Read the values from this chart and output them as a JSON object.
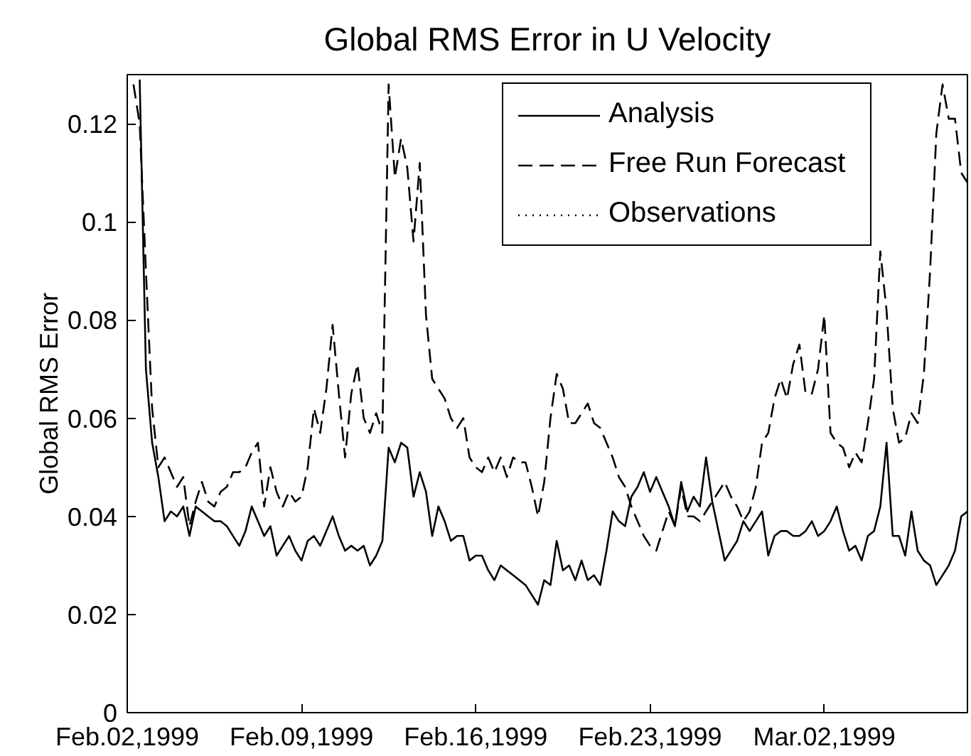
{
  "chart_data": {
    "type": "line",
    "title": "Global RMS Error in U Velocity",
    "ylabel": "Global RMS Error",
    "xlim": [
      "1999-02-02",
      "1999-03-07T18:00"
    ],
    "xticks": [
      {
        "value": "1999-02-02",
        "label": "Feb.02,1999"
      },
      {
        "value": "1999-02-09",
        "label": "Feb.09,1999"
      },
      {
        "value": "1999-02-16",
        "label": "Feb.16,1999"
      },
      {
        "value": "1999-02-23",
        "label": "Feb.23,1999"
      },
      {
        "value": "1999-03-02",
        "label": "Mar.02,1999"
      }
    ],
    "ylim": [
      0,
      0.13
    ],
    "yticks": [
      0,
      0.02,
      0.04,
      0.06,
      0.08,
      0.1,
      0.12
    ],
    "legend": "top right",
    "x": [
      "1999-02-02T06:00",
      "1999-02-02T12:00",
      "1999-02-02T18:00",
      "1999-02-03T00:00",
      "1999-02-03T06:00",
      "1999-02-03T12:00",
      "1999-02-03T18:00",
      "1999-02-04T00:00",
      "1999-02-04T06:00",
      "1999-02-04T12:00",
      "1999-02-04T18:00",
      "1999-02-05T00:00",
      "1999-02-05T06:00",
      "1999-02-05T12:00",
      "1999-02-05T18:00",
      "1999-02-06T00:00",
      "1999-02-06T06:00",
      "1999-02-06T12:00",
      "1999-02-06T18:00",
      "1999-02-07T00:00",
      "1999-02-07T06:00",
      "1999-02-07T12:00",
      "1999-02-07T18:00",
      "1999-02-08T00:00",
      "1999-02-08T06:00",
      "1999-02-08T12:00",
      "1999-02-08T18:00",
      "1999-02-09T00:00",
      "1999-02-09T06:00",
      "1999-02-09T12:00",
      "1999-02-09T18:00",
      "1999-02-10T00:00",
      "1999-02-10T06:00",
      "1999-02-10T12:00",
      "1999-02-10T18:00",
      "1999-02-11T00:00",
      "1999-02-11T06:00",
      "1999-02-11T12:00",
      "1999-02-11T18:00",
      "1999-02-12T00:00",
      "1999-02-12T06:00",
      "1999-02-12T12:00",
      "1999-02-12T18:00",
      "1999-02-13T00:00",
      "1999-02-13T06:00",
      "1999-02-13T12:00",
      "1999-02-13T18:00",
      "1999-02-14T00:00",
      "1999-02-14T06:00",
      "1999-02-14T12:00",
      "1999-02-14T18:00",
      "1999-02-15T00:00",
      "1999-02-15T06:00",
      "1999-02-15T12:00",
      "1999-02-15T18:00",
      "1999-02-16T00:00",
      "1999-02-16T06:00",
      "1999-02-16T12:00",
      "1999-02-16T18:00",
      "1999-02-17T00:00",
      "1999-02-17T06:00",
      "1999-02-17T12:00",
      "1999-02-17T18:00",
      "1999-02-18T00:00",
      "1999-02-18T06:00",
      "1999-02-18T12:00",
      "1999-02-18T18:00",
      "1999-02-19T00:00",
      "1999-02-19T06:00",
      "1999-02-19T12:00",
      "1999-02-19T18:00",
      "1999-02-20T00:00",
      "1999-02-20T06:00",
      "1999-02-20T12:00",
      "1999-02-20T18:00",
      "1999-02-21T00:00",
      "1999-02-21T06:00",
      "1999-02-21T12:00",
      "1999-02-21T18:00",
      "1999-02-22T00:00",
      "1999-02-22T06:00",
      "1999-02-22T12:00",
      "1999-02-22T18:00",
      "1999-02-23T00:00",
      "1999-02-23T06:00",
      "1999-02-23T12:00",
      "1999-02-23T18:00",
      "1999-02-24T00:00",
      "1999-02-24T06:00",
      "1999-02-24T12:00",
      "1999-02-24T18:00",
      "1999-02-25T00:00",
      "1999-02-25T06:00",
      "1999-02-25T12:00",
      "1999-02-25T18:00",
      "1999-02-26T00:00",
      "1999-02-26T06:00",
      "1999-02-26T12:00",
      "1999-02-26T18:00",
      "1999-02-27T00:00",
      "1999-02-27T06:00",
      "1999-02-27T12:00",
      "1999-02-27T18:00",
      "1999-02-28T00:00",
      "1999-02-28T06:00",
      "1999-02-28T12:00",
      "1999-02-28T18:00",
      "1999-03-01T00:00",
      "1999-03-01T06:00",
      "1999-03-01T12:00",
      "1999-03-01T18:00",
      "1999-03-02T00:00",
      "1999-03-02T06:00",
      "1999-03-02T12:00",
      "1999-03-02T18:00",
      "1999-03-03T00:00",
      "1999-03-03T06:00",
      "1999-03-03T12:00",
      "1999-03-03T18:00",
      "1999-03-04T00:00",
      "1999-03-04T06:00",
      "1999-03-04T12:00",
      "1999-03-04T18:00",
      "1999-03-05T00:00",
      "1999-03-05T06:00",
      "1999-03-05T12:00",
      "1999-03-05T18:00",
      "1999-03-06T00:00",
      "1999-03-06T06:00",
      "1999-03-06T12:00",
      "1999-03-06T18:00",
      "1999-03-07T00:00",
      "1999-03-07T06:00",
      "1999-03-07T12:00",
      "1999-03-07T18:00"
    ],
    "series": [
      {
        "name": "Analysis",
        "color": "#000000",
        "line_style": "solid",
        "values": [
          null,
          0.129,
          0.07,
          0.055,
          0.048,
          0.039,
          0.041,
          0.04,
          0.042,
          0.036,
          0.042,
          0.041,
          0.04,
          0.039,
          0.039,
          0.038,
          0.036,
          0.034,
          0.037,
          0.042,
          0.039,
          0.036,
          0.038,
          0.032,
          0.034,
          0.036,
          0.033,
          0.031,
          0.035,
          0.036,
          0.034,
          0.037,
          0.04,
          0.036,
          0.033,
          0.034,
          0.033,
          0.034,
          0.03,
          0.032,
          0.035,
          0.054,
          0.051,
          0.055,
          0.054,
          0.044,
          0.049,
          0.045,
          0.036,
          0.042,
          0.039,
          0.035,
          0.036,
          0.036,
          0.031,
          0.032,
          0.032,
          0.029,
          0.027,
          0.03,
          0.029,
          0.028,
          0.027,
          0.026,
          0.024,
          0.022,
          0.027,
          0.026,
          0.035,
          0.029,
          0.03,
          0.027,
          0.031,
          0.027,
          0.028,
          0.026,
          0.033,
          0.041,
          0.039,
          0.038,
          0.044,
          0.046,
          0.049,
          0.045,
          0.048,
          0.045,
          0.042,
          0.038,
          0.047,
          0.041,
          0.044,
          0.042,
          0.052,
          0.043,
          0.037,
          0.031,
          0.033,
          0.035,
          0.039,
          0.037,
          0.039,
          0.041,
          0.032,
          0.036,
          0.037,
          0.037,
          0.036,
          0.036,
          0.037,
          0.039,
          0.036,
          0.037,
          0.039,
          0.042,
          0.037,
          0.033,
          0.034,
          0.031,
          0.036,
          0.037,
          0.042,
          0.055,
          0.036,
          0.036,
          0.032,
          0.041,
          0.033,
          0.031,
          0.03,
          0.026,
          0.028,
          0.03,
          0.033,
          0.04,
          0.041
        ]
      },
      {
        "name": "Free Run Forecast",
        "color": "#000000",
        "line_style": "dashed",
        "values": [
          0.128,
          0.12,
          0.09,
          0.062,
          0.05,
          0.052,
          0.049,
          0.046,
          0.048,
          0.038,
          0.043,
          0.047,
          0.043,
          0.042,
          0.045,
          0.046,
          0.049,
          0.049,
          0.05,
          0.053,
          0.055,
          0.042,
          0.05,
          0.045,
          0.042,
          0.045,
          0.043,
          0.044,
          0.05,
          0.062,
          0.057,
          0.066,
          0.079,
          0.065,
          0.052,
          0.065,
          0.071,
          0.06,
          0.057,
          0.061,
          0.057,
          0.128,
          0.109,
          0.117,
          0.111,
          0.096,
          0.112,
          0.081,
          0.068,
          0.066,
          0.064,
          0.06,
          0.058,
          0.06,
          0.052,
          0.05,
          0.049,
          0.052,
          0.049,
          0.052,
          0.048,
          0.052,
          0.051,
          0.051,
          0.046,
          0.04,
          0.047,
          0.06,
          0.069,
          0.066,
          0.059,
          0.059,
          0.061,
          0.063,
          0.059,
          0.058,
          0.055,
          0.052,
          0.048,
          0.046,
          0.042,
          0.039,
          0.036,
          0.034,
          0.033,
          0.037,
          0.041,
          0.038,
          0.046,
          0.04,
          0.04,
          0.039,
          0.041,
          0.043,
          0.045,
          0.047,
          0.044,
          0.042,
          0.039,
          0.041,
          0.046,
          0.055,
          0.057,
          0.064,
          0.068,
          0.064,
          0.071,
          0.075,
          0.065,
          0.065,
          0.07,
          0.081,
          0.057,
          0.055,
          0.054,
          0.05,
          0.053,
          0.051,
          0.059,
          0.068,
          0.094,
          0.082,
          0.062,
          0.055,
          0.056,
          0.061,
          0.059,
          0.069,
          0.09,
          0.118,
          0.128,
          0.121,
          0.121,
          0.11,
          0.108
        ]
      },
      {
        "name": "Observations",
        "color": "#000000",
        "line_style": "dotted",
        "values": [
          null,
          null,
          null,
          null,
          null,
          null,
          null,
          null,
          null,
          null,
          null,
          null,
          null,
          null,
          null,
          null,
          null,
          null,
          null,
          null,
          null,
          null,
          null,
          null,
          null,
          null,
          null,
          null,
          null,
          null,
          null,
          null,
          null,
          null,
          null,
          null,
          null,
          null,
          null,
          null,
          null,
          null,
          null,
          null,
          null,
          null,
          null,
          null,
          null,
          null,
          null,
          null,
          null,
          null,
          null,
          null,
          null,
          null,
          null,
          null,
          null,
          null,
          null,
          null,
          null,
          null,
          null,
          null,
          null,
          null,
          null,
          null,
          null,
          null,
          null,
          null,
          null,
          null,
          null,
          null,
          null,
          null,
          null,
          null,
          null,
          null,
          null,
          null,
          null,
          null,
          null,
          null,
          null,
          null,
          null,
          null,
          null,
          null,
          null,
          null,
          null,
          null,
          null,
          null,
          null,
          null,
          null,
          null,
          null,
          null,
          null,
          null,
          null,
          null,
          null,
          null,
          null,
          null,
          null,
          null,
          null,
          null,
          null,
          null,
          null,
          null,
          null,
          null,
          null,
          null,
          null,
          null,
          null,
          null,
          null
        ]
      }
    ]
  }
}
